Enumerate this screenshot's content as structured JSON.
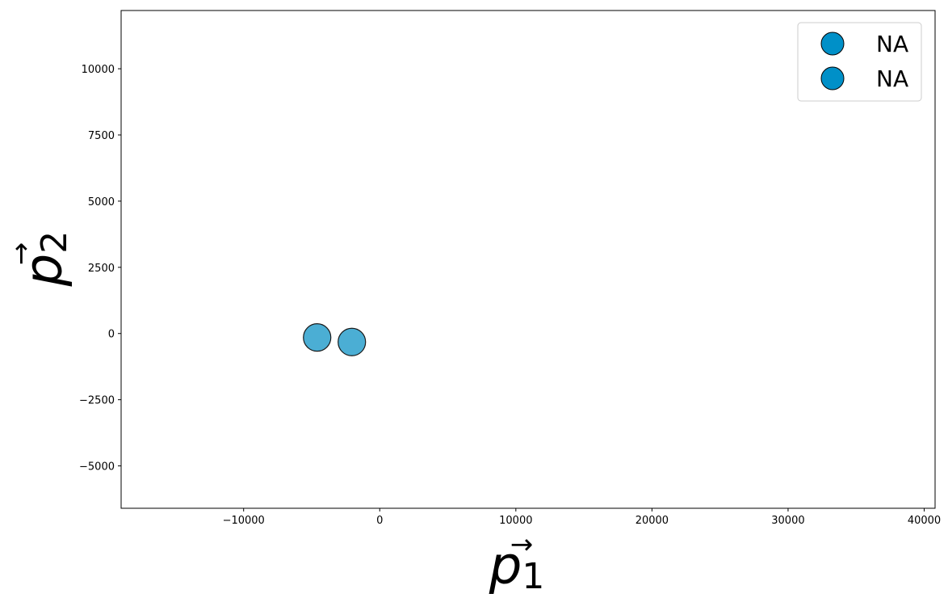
{
  "chart_data": {
    "type": "scatter",
    "xlabel": {
      "symbol": "p",
      "subscript": "1"
    },
    "ylabel": {
      "symbol": "p",
      "subscript": "2"
    },
    "xlim": [
      -19000,
      40800
    ],
    "ylim": [
      -6600,
      12200
    ],
    "x_ticks": [
      -10000,
      0,
      10000,
      20000,
      30000,
      40000
    ],
    "y_ticks": [
      -5000,
      -2500,
      0,
      2500,
      5000,
      7500,
      10000
    ],
    "x_tick_labels": [
      "−10000",
      "0",
      "10000",
      "20000",
      "30000",
      "40000"
    ],
    "y_tick_labels": [
      "−5000",
      "−2500",
      "0",
      "2500",
      "5000",
      "7500",
      "10000"
    ],
    "grid": false,
    "legend_position": "top-right",
    "series": [
      {
        "name": "NA",
        "color": "#0f93c6",
        "legend_color": "#0090c8",
        "points": [
          {
            "x": -4600,
            "y": -150
          }
        ]
      },
      {
        "name": "NA",
        "color": "#0f93c6",
        "legend_color": "#0090c8",
        "points": [
          {
            "x": -2050,
            "y": -320
          }
        ]
      }
    ]
  }
}
